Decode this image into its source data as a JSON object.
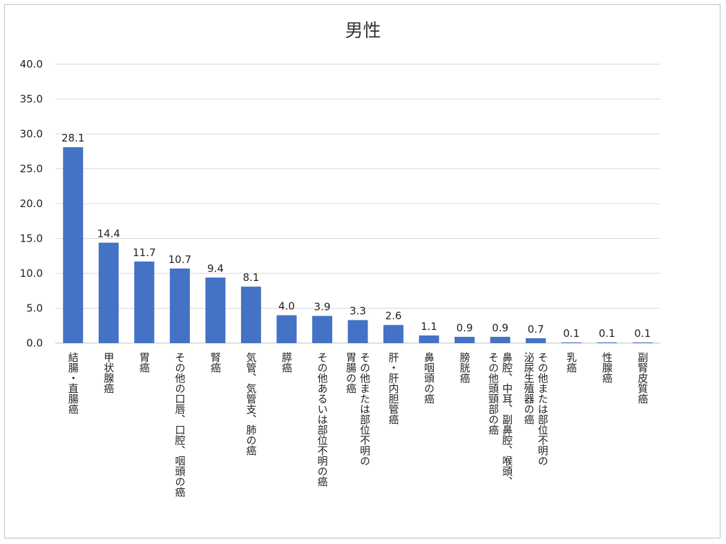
{
  "chart_data": {
    "type": "bar",
    "title": "男性",
    "xlabel": "",
    "ylabel": "",
    "ylim": [
      0,
      40
    ],
    "yticks": [
      "0.0",
      "5.0",
      "10.0",
      "15.0",
      "20.0",
      "25.0",
      "30.0",
      "35.0",
      "40.0"
    ],
    "grid": true,
    "bar_color": "#4472c4",
    "categories": [
      "結腸・直腸癌",
      "甲状腺癌",
      "胃癌",
      "その他の口唇、口腔、咽頭の癌",
      "腎癌",
      "気管、気管支、肺の癌",
      "膵癌",
      "その他あるいは部位不明の癌",
      "その他または部位不明の胃腸の癌",
      "肝・肝内胆管癌",
      "鼻咽頭の癌",
      "膀胱癌",
      "鼻腔、中耳、副鼻腔、喉頭、その他頭頸部の癌",
      "その他または部位不明の泌尿生殖器の癌",
      "乳癌",
      "性腺癌",
      "副腎皮質癌"
    ],
    "category_lines": [
      [
        "結腸・直腸癌"
      ],
      [
        "甲状腺癌"
      ],
      [
        "胃癌"
      ],
      [
        "その他の口唇、口腔、咽頭の癌"
      ],
      [
        "腎癌"
      ],
      [
        "気管、気管支、肺の癌"
      ],
      [
        "膵癌"
      ],
      [
        "その他あるいは部位不明の癌"
      ],
      [
        "その他または部位不明の",
        "胃腸の癌"
      ],
      [
        "肝・肝内胆管癌"
      ],
      [
        "鼻咽頭の癌"
      ],
      [
        "膀胱癌"
      ],
      [
        "鼻腔、中耳、副鼻腔、喉頭、",
        "その他頭頸部の癌"
      ],
      [
        "その他または部位不明の",
        "泌尿生殖器の癌"
      ],
      [
        "乳癌"
      ],
      [
        "性腺癌"
      ],
      [
        "副腎皮質癌"
      ]
    ],
    "values": [
      28.1,
      14.4,
      11.7,
      10.7,
      9.4,
      8.1,
      4.0,
      3.9,
      3.3,
      2.6,
      1.1,
      0.9,
      0.9,
      0.7,
      0.1,
      0.1,
      0.1
    ],
    "value_labels": [
      "28.1",
      "14.4",
      "11.7",
      "10.7",
      "9.4",
      "8.1",
      "4.0",
      "3.9",
      "3.3",
      "2.6",
      "1.1",
      "0.9",
      "0.9",
      "0.7",
      "0.1",
      "0.1",
      "0.1"
    ]
  }
}
